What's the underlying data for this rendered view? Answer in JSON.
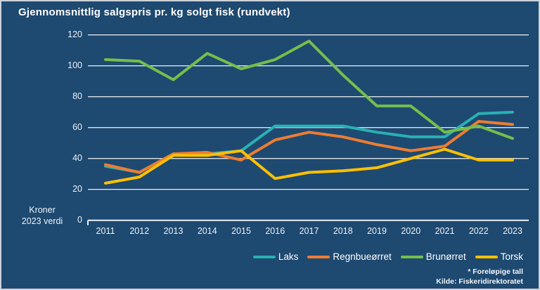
{
  "title": "Gjennomsnittlig salgspris pr. kg solgt fisk (rundvekt)",
  "y_axis_unit": {
    "line1": "Kroner",
    "line2": "2023 verdi"
  },
  "footnote": {
    "line1": "* Foreløpige tall",
    "line2": "Kilde: Fiskeridirektoratet"
  },
  "colors": {
    "background": "#1e4970",
    "gridline": "#dde3e8",
    "axis_line": "#eef2f6",
    "text": "#ffffff",
    "laks": "#29b0b4",
    "regnbueorret": "#ed7d31",
    "brunorret": "#74bf4b",
    "torsk": "#ffc000"
  },
  "chart_data": {
    "type": "line",
    "title": "Gjennomsnittlig salgspris pr. kg solgt fisk (rundvekt)",
    "ylabel": "Kroner 2023 verdi",
    "xlabel": "",
    "ylim": [
      0,
      120
    ],
    "ytick_step": 20,
    "grid": true,
    "legend_position": "bottom-right",
    "categories": [
      "2011",
      "2012",
      "2013",
      "2014",
      "2015",
      "2016",
      "2017",
      "2018",
      "2019",
      "2020",
      "2021",
      "2022",
      "2023"
    ],
    "series": [
      {
        "name": "Laks",
        "color": "#29b0b4",
        "values": [
          35,
          31,
          43,
          43,
          45,
          61,
          61,
          61,
          57,
          54,
          54,
          69,
          70
        ]
      },
      {
        "name": "Regnbueørret",
        "color": "#ed7d31",
        "values": [
          36,
          31,
          43,
          44,
          39,
          52,
          57,
          54,
          49,
          45,
          48,
          64,
          62
        ]
      },
      {
        "name": "Brunørret",
        "color": "#74bf4b",
        "values": [
          104,
          103,
          91,
          108,
          98,
          104,
          116,
          94,
          74,
          74,
          57,
          61,
          53
        ]
      },
      {
        "name": "Torsk",
        "color": "#ffc000",
        "values": [
          24,
          28,
          42,
          42,
          45,
          27,
          31,
          32,
          34,
          40,
          46,
          39,
          39
        ]
      }
    ]
  }
}
